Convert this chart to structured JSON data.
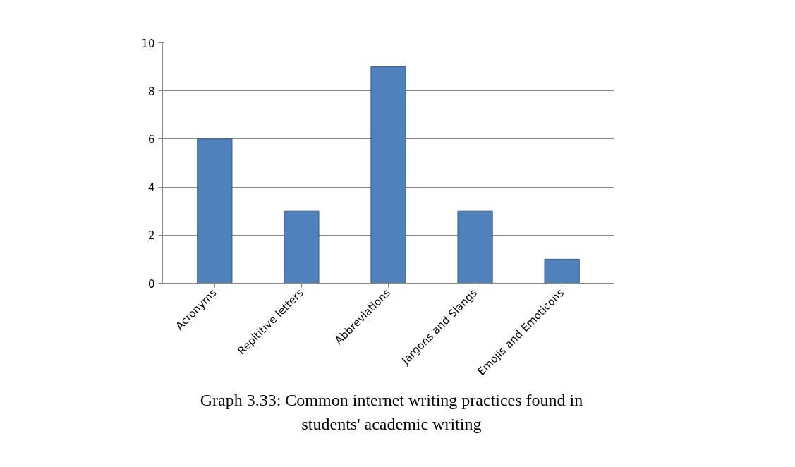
{
  "chart_data": {
    "type": "bar",
    "categories": [
      "Acronyms",
      "Repititive letters",
      "Abbreviations",
      "Jargons and Slangs",
      "Emojis and Emoticons"
    ],
    "values": [
      6,
      3,
      9,
      3,
      1
    ],
    "color": "#4f81bd",
    "ylim": [
      0,
      10
    ],
    "yticks": [
      0,
      2,
      4,
      6,
      8,
      10
    ],
    "grid": "y",
    "annotations": [
      "Graph 3.33: Common internet writing practices found in students' academic writing"
    ]
  }
}
